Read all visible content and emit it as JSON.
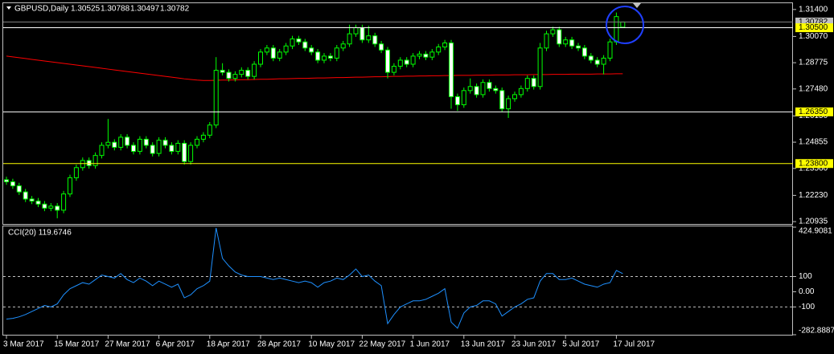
{
  "chart_data": [
    {
      "type": "candlestick",
      "title": "GBPUSD,Daily",
      "title_values": [
        "1.30525",
        "1.30788",
        "1.30497",
        "1.30782"
      ],
      "up_color": "#000000",
      "down_color": "#ffffff",
      "wick_color": "#00ff00",
      "categories": [
        "3 Mar 2017",
        null,
        null,
        null,
        null,
        null,
        null,
        null,
        "15 Mar 2017",
        null,
        null,
        null,
        null,
        null,
        null,
        null,
        "27 Mar 2017",
        null,
        null,
        null,
        null,
        null,
        null,
        null,
        "6 Apr 2017",
        null,
        null,
        null,
        null,
        null,
        null,
        null,
        "18 Apr 2017",
        null,
        null,
        null,
        null,
        null,
        null,
        null,
        "28 Apr 2017",
        null,
        null,
        null,
        null,
        null,
        null,
        null,
        "10 May 2017",
        null,
        null,
        null,
        null,
        null,
        null,
        null,
        "22 May 2017",
        null,
        null,
        null,
        null,
        null,
        null,
        null,
        "1 Jun 2017",
        null,
        null,
        null,
        null,
        null,
        null,
        null,
        "13 Jun 2017",
        null,
        null,
        null,
        null,
        null,
        null,
        null,
        "23 Jun 2017",
        null,
        null,
        null,
        null,
        null,
        null,
        null,
        "5 Jul 2017",
        null,
        null,
        null,
        null,
        null,
        null,
        null,
        "17 Jul 2017",
        null
      ],
      "open": [
        1.23,
        1.229,
        1.227,
        1.224,
        1.2205,
        1.2195,
        1.218,
        1.216,
        1.217,
        1.215,
        1.223,
        1.231,
        1.236,
        1.2395,
        1.237,
        1.242,
        1.247,
        1.2485,
        1.246,
        1.251,
        1.247,
        1.244,
        1.25,
        1.247,
        1.243,
        1.2495,
        1.247,
        1.244,
        1.248,
        1.239,
        1.247,
        1.25,
        1.252,
        1.257,
        1.284,
        1.283,
        1.28,
        1.282,
        1.284,
        1.281,
        1.287,
        1.293,
        1.295,
        1.29,
        1.293,
        1.296,
        1.2995,
        1.298,
        1.295,
        1.293,
        1.289,
        1.291,
        1.29,
        1.295,
        1.297,
        1.302,
        1.305,
        1.299,
        1.301,
        1.297,
        1.294,
        1.283,
        1.286,
        1.289,
        1.287,
        1.291,
        1.292,
        1.2905,
        1.293,
        1.2955,
        1.2975,
        1.271,
        1.267,
        1.274,
        1.276,
        1.272,
        1.278,
        1.275,
        1.274,
        1.265,
        1.27,
        1.272,
        1.275,
        1.28,
        1.276,
        1.295,
        1.302,
        1.304,
        1.297,
        1.299,
        1.296,
        1.295,
        1.291,
        1.289,
        1.287,
        1.29,
        1.298,
        1.30525
      ],
      "high": [
        1.2315,
        1.2305,
        1.2285,
        1.2255,
        1.222,
        1.221,
        1.2195,
        1.2185,
        1.2185,
        1.2245,
        1.2325,
        1.2375,
        1.241,
        1.241,
        1.2435,
        1.2485,
        1.26,
        1.25,
        1.2525,
        1.2525,
        1.2485,
        1.2515,
        1.2515,
        1.2485,
        1.251,
        1.251,
        1.2485,
        1.2495,
        1.2495,
        1.2485,
        1.2515,
        1.2535,
        1.2585,
        1.2905,
        1.2875,
        1.2845,
        1.2835,
        1.2855,
        1.2855,
        1.2885,
        1.2945,
        1.2965,
        1.2965,
        1.2945,
        1.2975,
        1.301,
        1.301,
        1.2995,
        1.2965,
        1.2945,
        1.2925,
        1.2925,
        1.2965,
        1.2985,
        1.3065,
        1.3065,
        1.3065,
        1.306,
        1.3025,
        1.2985,
        1.2955,
        1.2875,
        1.2905,
        1.2905,
        1.2925,
        1.2935,
        1.2935,
        1.2945,
        1.297,
        1.299,
        1.299,
        1.2725,
        1.2755,
        1.28,
        1.2775,
        1.2795,
        1.2795,
        1.2765,
        1.2755,
        1.2715,
        1.2735,
        1.2765,
        1.2815,
        1.2815,
        1.2975,
        1.3035,
        1.3055,
        1.3055,
        1.3005,
        1.3005,
        1.2975,
        1.2965,
        1.2925,
        1.2905,
        1.2915,
        1.2995,
        1.3125,
        1.30788
      ],
      "low": [
        1.2275,
        1.2255,
        1.2225,
        1.219,
        1.218,
        1.2165,
        1.2145,
        1.2145,
        1.211,
        1.2135,
        1.2215,
        1.2295,
        1.2345,
        1.2355,
        1.2355,
        1.2405,
        1.2455,
        1.2445,
        1.2445,
        1.2455,
        1.2425,
        1.2425,
        1.2455,
        1.2415,
        1.2415,
        1.2455,
        1.2425,
        1.2425,
        1.2375,
        1.2375,
        1.2455,
        1.2485,
        1.2505,
        1.2555,
        1.2815,
        1.2785,
        1.2785,
        1.2805,
        1.2795,
        1.2795,
        1.2855,
        1.2915,
        1.2885,
        1.2885,
        1.2915,
        1.2945,
        1.2965,
        1.2935,
        1.2915,
        1.2875,
        1.2875,
        1.2885,
        1.2885,
        1.2935,
        1.2955,
        1.3005,
        1.2975,
        1.2975,
        1.2955,
        1.2925,
        1.28,
        1.2815,
        1.2845,
        1.2855,
        1.2855,
        1.2895,
        1.289,
        1.289,
        1.2915,
        1.294,
        1.265,
        1.264,
        1.2655,
        1.2725,
        1.2705,
        1.2705,
        1.2735,
        1.2725,
        1.2635,
        1.2605,
        1.2685,
        1.2705,
        1.2735,
        1.2745,
        1.2745,
        1.2935,
        1.3005,
        1.2955,
        1.2955,
        1.2945,
        1.2935,
        1.2895,
        1.2875,
        1.2855,
        1.282,
        1.2885,
        1.2965,
        1.30497
      ],
      "close": [
        1.229,
        1.227,
        1.224,
        1.2205,
        1.2195,
        1.218,
        1.216,
        1.217,
        1.215,
        1.223,
        1.231,
        1.236,
        1.2395,
        1.237,
        1.242,
        1.247,
        1.2485,
        1.246,
        1.251,
        1.247,
        1.244,
        1.25,
        1.247,
        1.243,
        1.2495,
        1.247,
        1.244,
        1.248,
        1.239,
        1.247,
        1.25,
        1.252,
        1.257,
        1.284,
        1.283,
        1.28,
        1.282,
        1.284,
        1.281,
        1.287,
        1.293,
        1.295,
        1.29,
        1.293,
        1.296,
        1.2995,
        1.298,
        1.295,
        1.293,
        1.289,
        1.291,
        1.29,
        1.295,
        1.297,
        1.302,
        1.305,
        1.299,
        1.301,
        1.297,
        1.294,
        1.283,
        1.286,
        1.289,
        1.287,
        1.291,
        1.292,
        1.2905,
        1.293,
        1.2955,
        1.2975,
        1.271,
        1.267,
        1.274,
        1.276,
        1.272,
        1.278,
        1.275,
        1.274,
        1.265,
        1.27,
        1.272,
        1.275,
        1.28,
        1.276,
        1.295,
        1.302,
        1.304,
        1.297,
        1.299,
        1.296,
        1.295,
        1.291,
        1.289,
        1.287,
        1.29,
        1.298,
        1.3105,
        1.30782
      ],
      "ma": {
        "color": "#ff0000",
        "values": [
          1.291,
          1.2906,
          1.2902,
          1.2898,
          1.2894,
          1.289,
          1.2886,
          1.2882,
          1.2878,
          1.2874,
          1.287,
          1.2866,
          1.2862,
          1.2858,
          1.2854,
          1.285,
          1.2846,
          1.2842,
          1.2838,
          1.2834,
          1.283,
          1.2826,
          1.2822,
          1.2818,
          1.2814,
          1.281,
          1.2806,
          1.2802,
          1.2798,
          1.2795,
          1.2792,
          1.279,
          1.279,
          1.2791,
          1.2792,
          1.2792,
          1.2793,
          1.2794,
          1.2794,
          1.2795,
          1.2796,
          1.2796,
          1.2797,
          1.2798,
          1.2798,
          1.2799,
          1.28,
          1.28,
          1.2801,
          1.2802,
          1.2802,
          1.2803,
          1.2804,
          1.2804,
          1.2805,
          1.2806,
          1.2806,
          1.2807,
          1.2808,
          1.2808,
          1.2809,
          1.281,
          1.281,
          1.2811,
          1.2811,
          1.2812,
          1.2812,
          1.2813,
          1.2813,
          1.2814,
          1.2814,
          1.2815,
          1.2815,
          1.2815,
          1.2816,
          1.2816,
          1.2816,
          1.2817,
          1.2817,
          1.2817,
          1.2818,
          1.2818,
          1.2818,
          1.2819,
          1.2819,
          1.2819,
          1.282,
          1.282,
          1.282,
          1.2821,
          1.2821,
          1.2821,
          1.2821,
          1.2822,
          1.2822,
          1.2822,
          1.2823,
          1.2823
        ]
      },
      "ylim": [
        1.2082,
        1.3167
      ],
      "yticks": [
        {
          "value": 1.314,
          "label": "1.31400"
        },
        {
          "value": 1.3007,
          "label": "1.30070"
        },
        {
          "value": 1.28775,
          "label": "1.28775"
        },
        {
          "value": 1.2748,
          "label": "1.27480"
        },
        {
          "value": 1.2615,
          "label": "1.26150"
        },
        {
          "value": 1.24855,
          "label": "1.24855"
        },
        {
          "value": 1.2356,
          "label": "1.23560"
        },
        {
          "value": 1.2223,
          "label": "1.22230"
        },
        {
          "value": 1.20935,
          "label": "1.20935"
        }
      ],
      "levels": [
        {
          "value": 1.30782,
          "label": "1.30782",
          "line_color": "#808080",
          "label_color": "#c0c0c0"
        },
        {
          "value": 1.305,
          "label": "1.30500",
          "line_color": "#ffffff",
          "label_color": "#ffff00"
        },
        {
          "value": 1.2635,
          "label": "1.26350",
          "line_color": "#ffffff",
          "label_color": "#ffff00"
        },
        {
          "value": 1.238,
          "label": "1.23800",
          "line_color": "#ffff00",
          "label_color": "#ffff00"
        }
      ]
    },
    {
      "type": "line",
      "title": "CCI(20) 119.6746",
      "color": "#1e90ff",
      "values": [
        -180,
        -175,
        -165,
        -150,
        -130,
        -110,
        -90,
        -100,
        -80,
        -20,
        20,
        40,
        60,
        50,
        80,
        110,
        100,
        90,
        120,
        80,
        60,
        90,
        70,
        40,
        70,
        50,
        30,
        50,
        -40,
        -20,
        20,
        40,
        70,
        420,
        220,
        170,
        130,
        110,
        100,
        100,
        100,
        90,
        80,
        90,
        80,
        70,
        60,
        70,
        60,
        30,
        60,
        70,
        90,
        80,
        110,
        150,
        100,
        110,
        70,
        40,
        -210,
        -150,
        -100,
        -80,
        -60,
        -60,
        -50,
        -30,
        -10,
        20,
        -200,
        -240,
        -140,
        -100,
        -90,
        -60,
        -60,
        -80,
        -160,
        -130,
        -100,
        -80,
        -50,
        -40,
        70,
        120,
        120,
        80,
        80,
        90,
        70,
        50,
        40,
        30,
        50,
        60,
        140,
        119.6746
      ],
      "ylim": [
        -282.8887,
        424.9081
      ],
      "yticks": [
        424.9081,
        100,
        {
          "value": 0,
          "label": "0.00"
        },
        -100,
        -282.8887
      ],
      "levels": [
        100,
        -100
      ],
      "level_style": "dashed"
    }
  ]
}
